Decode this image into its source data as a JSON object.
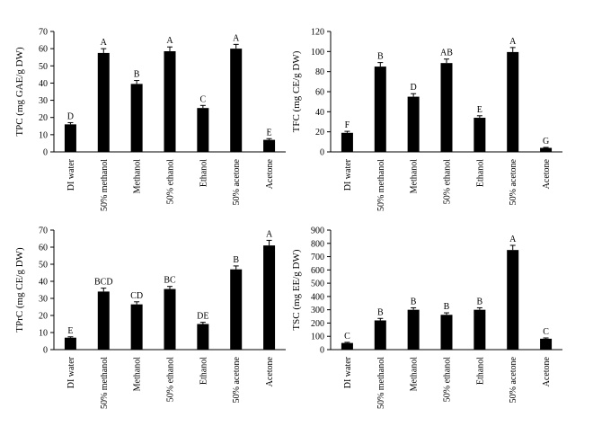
{
  "chart_data": [
    {
      "type": "bar",
      "ylabel": "TPC (mg GAE/g DW)",
      "ylim": [
        0,
        70
      ],
      "yticks": [
        0,
        10,
        20,
        30,
        40,
        50,
        60,
        70
      ],
      "categories": [
        "DI water",
        "50% methanol",
        "Methanol",
        "50% ethanol",
        "Ethanol",
        "50% acetone",
        "Acetone"
      ],
      "values": [
        16,
        57.5,
        39.5,
        58.5,
        25.5,
        60,
        7
      ],
      "errors": [
        1,
        2.5,
        2,
        2.5,
        1.5,
        2.5,
        0.7
      ],
      "labels": [
        "D",
        "A",
        "B",
        "A",
        "C",
        "A",
        "E"
      ]
    },
    {
      "type": "bar",
      "ylabel": "TFC (mg CE/g DW)",
      "ylim": [
        0,
        120
      ],
      "yticks": [
        0,
        20,
        40,
        60,
        80,
        100,
        120
      ],
      "categories": [
        "DI water",
        "50% methanol",
        "Methanol",
        "50% ethanol",
        "Ethanol",
        "50% acetone",
        "Acetone"
      ],
      "values": [
        19,
        85,
        55,
        88.5,
        34,
        99.5,
        4
      ],
      "errors": [
        1.5,
        4,
        3,
        4,
        2,
        4.5,
        0.5
      ],
      "labels": [
        "F",
        "B",
        "D",
        "AB",
        "E",
        "A",
        "G"
      ]
    },
    {
      "type": "bar",
      "ylabel": "TPrC (mg CE/g DW)",
      "ylim": [
        0,
        70
      ],
      "yticks": [
        0,
        10,
        20,
        30,
        40,
        50,
        60,
        70
      ],
      "categories": [
        "DI water",
        "50% methanol",
        "Methanol",
        "50% ethanol",
        "Ethanol",
        "50% acetone",
        "Acetone"
      ],
      "values": [
        7,
        34,
        26.5,
        35.5,
        15,
        47,
        61
      ],
      "errors": [
        0.5,
        2,
        1.5,
        1.5,
        1,
        2,
        3
      ],
      "labels": [
        "E",
        "BCD",
        "CD",
        "BC",
        "DE",
        "B",
        "A"
      ]
    },
    {
      "type": "bar",
      "ylabel": "TSC (mg EE/g DW)",
      "ylim": [
        0,
        900
      ],
      "yticks": [
        0,
        100,
        200,
        300,
        400,
        500,
        600,
        700,
        800,
        900
      ],
      "categories": [
        "DI water",
        "50% methanol",
        "Methanol",
        "50% ethanol",
        "Ethanol",
        "50% acetone",
        "Acetone"
      ],
      "values": [
        50,
        220,
        300,
        262,
        300,
        750,
        82
      ],
      "errors": [
        5,
        15,
        15,
        15,
        15,
        35,
        6
      ],
      "labels": [
        "C",
        "B",
        "B",
        "B",
        "B",
        "A",
        "C"
      ]
    }
  ]
}
